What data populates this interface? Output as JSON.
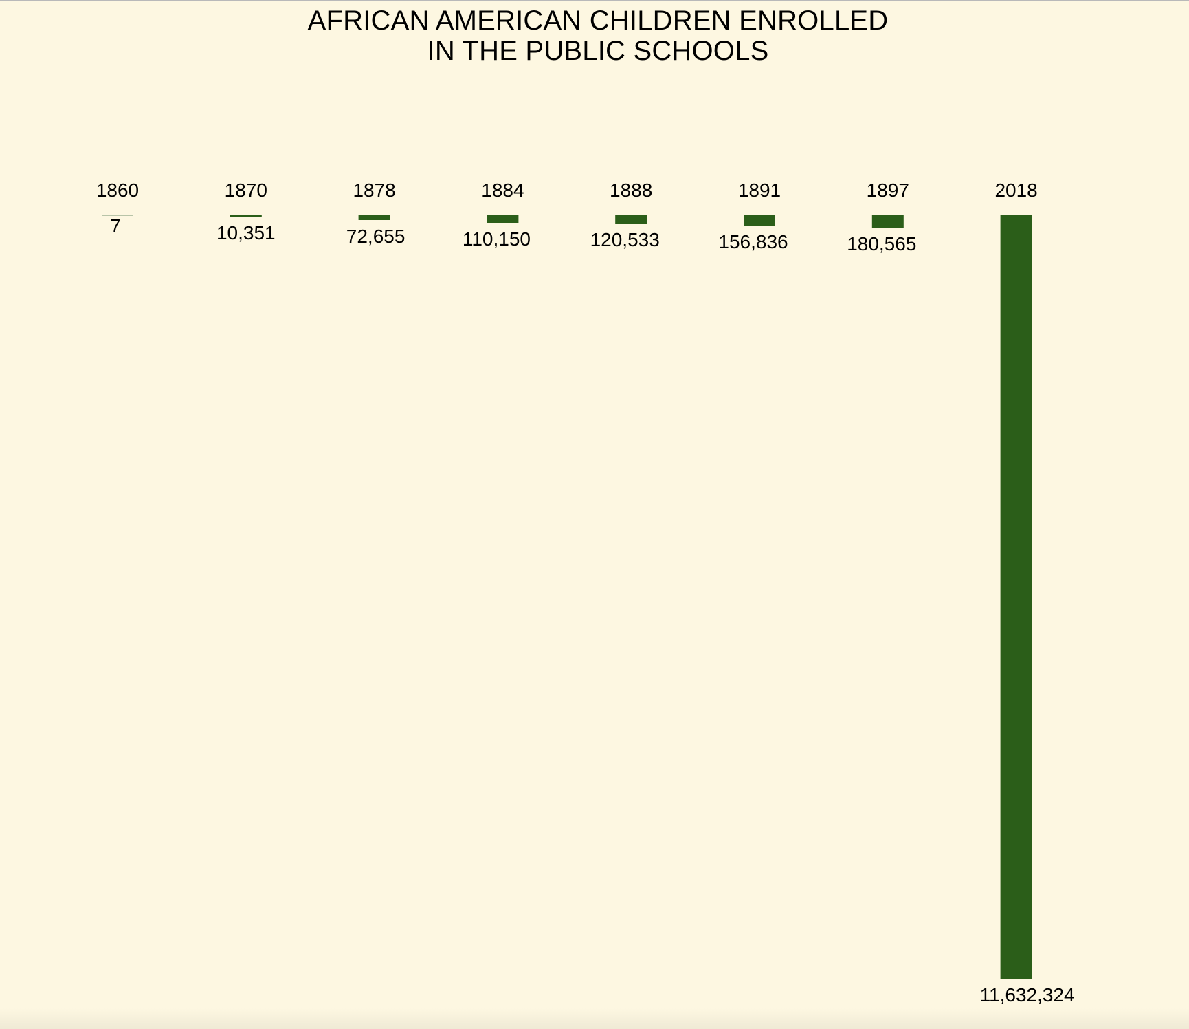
{
  "chart_data": {
    "type": "bar",
    "title_lines": [
      "AFRICAN AMERICAN CHILDREN ENROLLED",
      "IN THE PUBLIC SCHOOLS"
    ],
    "categories": [
      "1860",
      "1870",
      "1878",
      "1884",
      "1888",
      "1891",
      "1897",
      "2018"
    ],
    "values": [
      7,
      10351,
      72655,
      110150,
      120533,
      156836,
      180565,
      11632324
    ],
    "value_labels": [
      "7",
      "10,351",
      "72,655",
      "110,150",
      "120,533",
      "156,836",
      "180,565",
      "11,632,324"
    ],
    "orientation": "downward",
    "grid": false,
    "legend": "none",
    "colors": {
      "bar": "#2b5e19",
      "background": "#fdf7e1",
      "text": "#000000"
    }
  }
}
